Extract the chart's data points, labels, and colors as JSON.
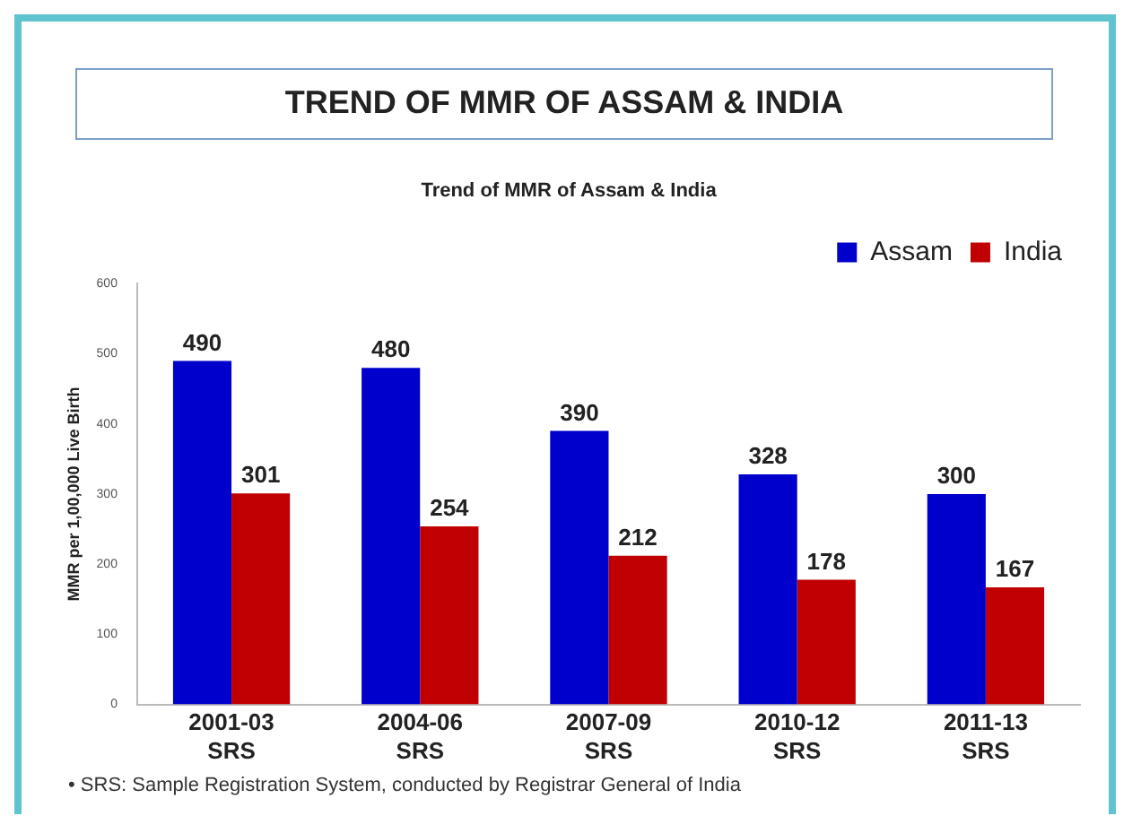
{
  "chart_data": {
    "type": "bar",
    "title": "TREND OF MMR OF ASSAM & INDIA",
    "subtitle": "Trend of MMR of Assam & India",
    "ylabel": "MMR per 1,00,000 Live Birth",
    "categories": [
      "2001-03 SRS",
      "2004-06 SRS",
      "2007-09 SRS",
      "2010-12 SRS",
      "2011-13 SRS"
    ],
    "series": [
      {
        "name": "Assam",
        "color": "#0000cc",
        "values": [
          490,
          480,
          390,
          328,
          300
        ]
      },
      {
        "name": "India",
        "color": "#c00000",
        "values": [
          301,
          254,
          212,
          178,
          167
        ]
      }
    ],
    "ylim": [
      0,
      600
    ],
    "yticks": [
      0,
      100,
      200,
      300,
      400,
      500,
      600
    ],
    "grid": false,
    "legend": "top right",
    "data_labels": true,
    "annotations": [
      "• SRS: Sample Registration System, conducted by Registrar General of India"
    ]
  }
}
